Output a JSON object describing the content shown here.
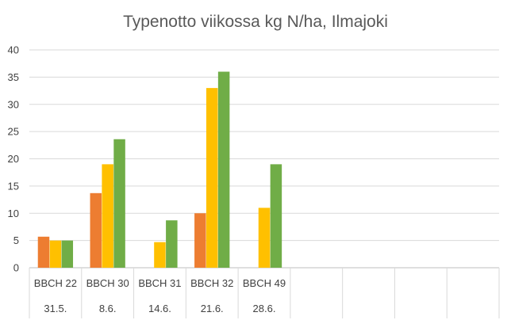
{
  "chart_data": {
    "type": "bar",
    "title": "Typenotto viikossa kg N/ha, Ilmajoki",
    "xlabel": "",
    "ylabel": "",
    "ylim": [
      0,
      40
    ],
    "yticks": [
      0,
      5,
      10,
      15,
      20,
      25,
      30,
      35,
      40
    ],
    "grid": true,
    "legend": "none",
    "categories": [
      {
        "stage": "BBCH 22",
        "date": "31.5."
      },
      {
        "stage": "BBCH 30",
        "date": "8.6."
      },
      {
        "stage": "BBCH 31",
        "date": "14.6."
      },
      {
        "stage": "BBCH 32",
        "date": "21.6."
      },
      {
        "stage": "BBCH 49",
        "date": "28.6."
      },
      {
        "stage": "",
        "date": ""
      },
      {
        "stage": "",
        "date": ""
      },
      {
        "stage": "",
        "date": ""
      },
      {
        "stage": "",
        "date": ""
      }
    ],
    "series": [
      {
        "color": "#ED7D31",
        "values": [
          5.7,
          13.7,
          null,
          10.0,
          null,
          null,
          null,
          null,
          null
        ]
      },
      {
        "color": "#FFC000",
        "values": [
          5.0,
          19.0,
          4.7,
          33.0,
          11.0,
          null,
          null,
          null,
          null
        ]
      },
      {
        "color": "#70AD47",
        "values": [
          5.0,
          23.6,
          8.7,
          36.0,
          19.0,
          null,
          null,
          null,
          null
        ]
      }
    ]
  }
}
